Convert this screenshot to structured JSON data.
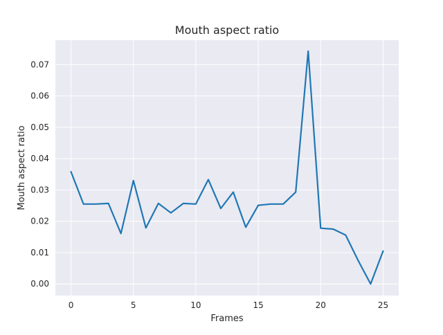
{
  "chart_data": {
    "type": "line",
    "title": "Mouth aspect ratio",
    "xlabel": "Frames",
    "ylabel": "Mouth aspect ratio",
    "x_ticks": [
      0,
      5,
      10,
      15,
      20,
      25
    ],
    "y_ticks": [
      0.0,
      0.01,
      0.02,
      0.03,
      0.04,
      0.05,
      0.06,
      0.07
    ],
    "y_tick_labels": [
      "0.00",
      "0.01",
      "0.02",
      "0.03",
      "0.04",
      "0.05",
      "0.06",
      "0.07"
    ],
    "x_tick_labels": [
      "0",
      "5",
      "10",
      "15",
      "20",
      "25"
    ],
    "xlim": [
      -1.25,
      26.25
    ],
    "ylim": [
      -0.0037,
      0.0778
    ],
    "grid": true,
    "background": "#eaeaf2",
    "grid_color": "#ffffff",
    "series": [
      {
        "color": "#1f77b4",
        "x": [
          0,
          1,
          2,
          3,
          4,
          5,
          6,
          7,
          8,
          9,
          10,
          11,
          12,
          13,
          14,
          15,
          16,
          17,
          18,
          19,
          20,
          21,
          22,
          23,
          24,
          25
        ],
        "values": [
          0.0358,
          0.0255,
          0.0255,
          0.0257,
          0.0161,
          0.033,
          0.0179,
          0.0257,
          0.0227,
          0.0257,
          0.0255,
          0.0333,
          0.0241,
          0.0293,
          0.0181,
          0.0251,
          0.0255,
          0.0255,
          0.0293,
          0.0743,
          0.0178,
          0.0175,
          0.0156,
          0.0075,
          0.0,
          0.0105
        ]
      }
    ]
  }
}
